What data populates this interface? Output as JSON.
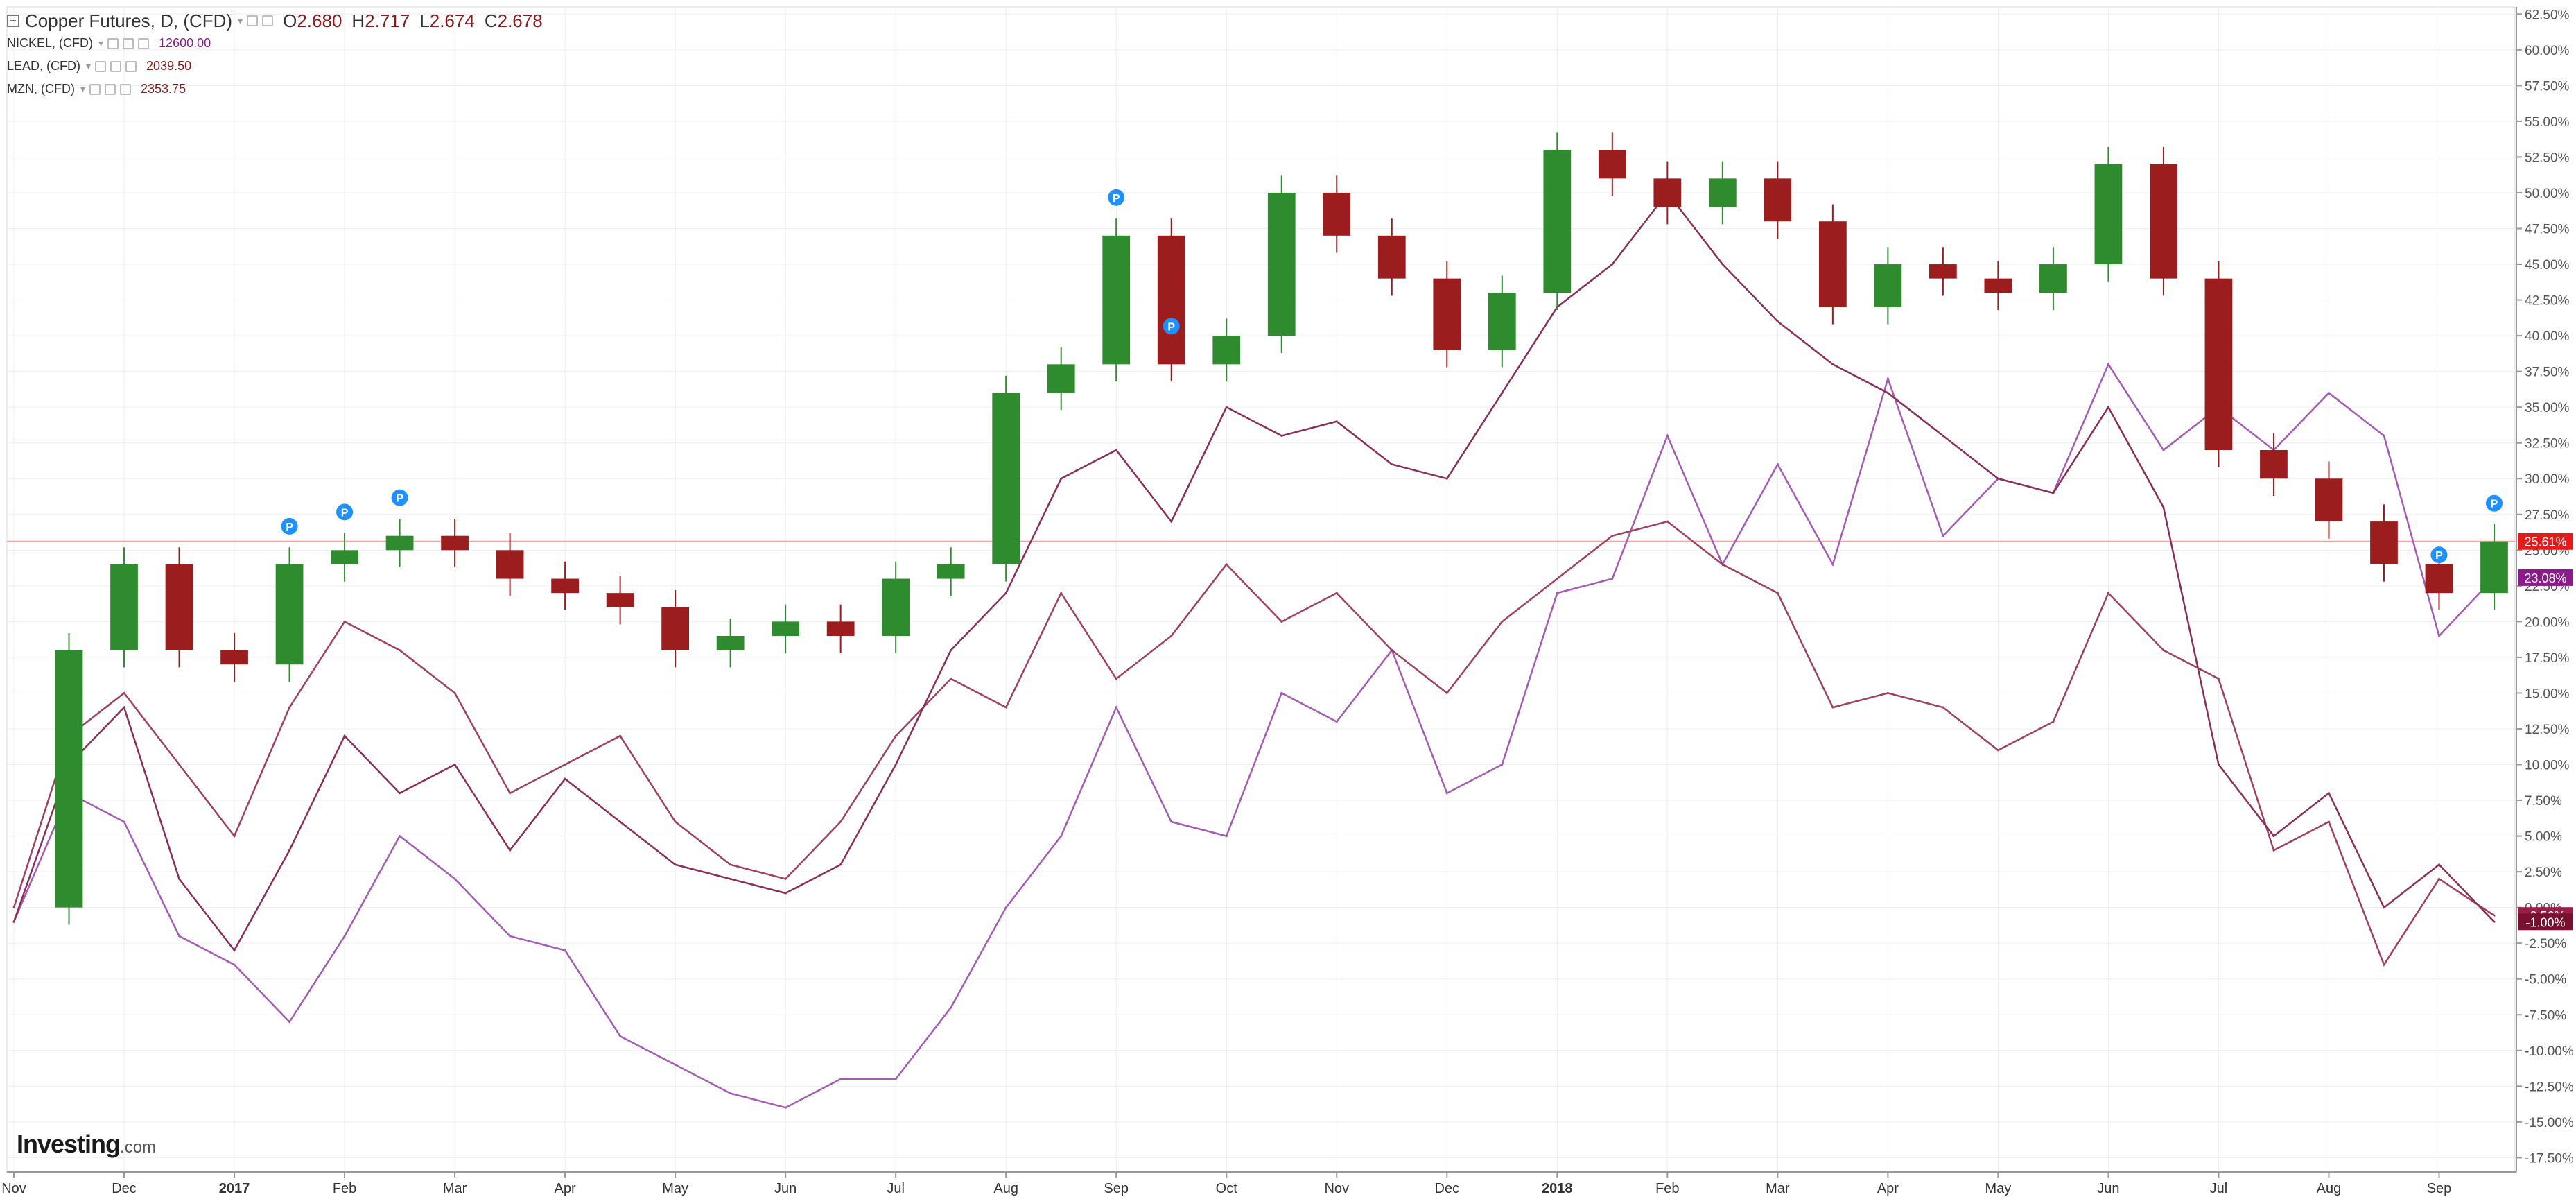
{
  "legend": {
    "main_title": "Copper Futures, D, (CFD)",
    "ohlc": [
      {
        "key": "O",
        "value": "2.680"
      },
      {
        "key": "H",
        "value": "2.717"
      },
      {
        "key": "L",
        "value": "2.674"
      },
      {
        "key": "C",
        "value": "2.678"
      }
    ],
    "series": [
      {
        "label": "NICKEL, (CFD)",
        "value": "12600.00",
        "color": "#8b1a8b"
      },
      {
        "label": "LEAD, (CFD)",
        "value": "2039.50",
        "color": "#8b1a1a"
      },
      {
        "label": "MZN, (CFD)",
        "value": "2353.75",
        "color": "#8b1a1a"
      }
    ]
  },
  "brand": {
    "name": "Investing",
    "suffix": ".com"
  },
  "colors": {
    "up": "#2e8b2e",
    "down": "#9b1d1d",
    "nickel": "#a55ab5",
    "lead": "#a0405e",
    "zinc": "#8b2d5a",
    "grid": "#eeeeee",
    "ref_line": "#f2a0a0",
    "marker": "#1e90ff"
  },
  "chart_data": {
    "type": "line",
    "title": "Copper Futures, D, (CFD)",
    "xlabel": "",
    "ylabel": "",
    "ylim": [
      -18.5,
      63
    ],
    "x_ticks": [
      "Nov",
      "Dec",
      "2017",
      "Feb",
      "Mar",
      "Apr",
      "May",
      "Jun",
      "Jul",
      "Aug",
      "Sep",
      "Oct",
      "Nov",
      "Dec",
      "2018",
      "Feb",
      "Mar",
      "Apr",
      "May",
      "Jun",
      "Jul",
      "Aug",
      "Sep"
    ],
    "y_ticks": [
      "62.50%",
      "60.00%",
      "57.50%",
      "55.00%",
      "52.50%",
      "50.00%",
      "47.50%",
      "45.00%",
      "42.50%",
      "40.00%",
      "37.50%",
      "35.00%",
      "32.50%",
      "30.00%",
      "27.50%",
      "25.00%",
      "22.50%",
      "20.00%",
      "17.50%",
      "15.00%",
      "12.50%",
      "10.00%",
      "7.50%",
      "5.00%",
      "2.50%",
      "0.00%",
      "-2.50%",
      "-5.00%",
      "-7.50%",
      "-10.00%",
      "-12.50%",
      "-15.00%",
      "-17.50%"
    ],
    "reference_line": 25.61,
    "last_value_labels": [
      {
        "text": "25.61%",
        "value": 25.61,
        "color": "#e31b1b"
      },
      {
        "text": "23.08%",
        "value": 23.08,
        "color": "#8b1a8b"
      },
      {
        "text": "-0.56%",
        "value": -0.56,
        "color": "#9b1d4a"
      },
      {
        "text": "-1.00%",
        "value": -1.0,
        "color": "#7a1030"
      }
    ],
    "grid": true,
    "legend_position": "top-left",
    "series": [
      {
        "name": "Copper Futures, D, (CFD)",
        "style": "candlestick",
        "x": [
          "Nov",
          "",
          "Dec",
          "",
          "2017",
          "",
          "Feb",
          "",
          "Mar",
          "",
          "Apr",
          "",
          "May",
          "",
          "Jun",
          "",
          "Jul",
          "",
          "Aug",
          "",
          "Sep",
          "",
          "Oct",
          "",
          "Nov",
          "",
          "Dec",
          "",
          "2018",
          "",
          "Feb",
          "",
          "Mar",
          "",
          "Apr",
          "",
          "May",
          "",
          "Jun",
          "",
          "Jul",
          "",
          "Aug",
          "",
          "Sep",
          ""
        ],
        "values": [
          0,
          18,
          24,
          18,
          17,
          24,
          25,
          26,
          25,
          23,
          22,
          21,
          18,
          19,
          20,
          19,
          23,
          24,
          36,
          38,
          47,
          38,
          40,
          50,
          47,
          44,
          39,
          43,
          53,
          51,
          49,
          51,
          48,
          42,
          45,
          44,
          43,
          45,
          52,
          44,
          32,
          30,
          27,
          24,
          22,
          25.61
        ]
      },
      {
        "name": "NICKEL, (CFD)",
        "x": [
          "Nov",
          "",
          "Dec",
          "",
          "2017",
          "",
          "Feb",
          "",
          "Mar",
          "",
          "Apr",
          "",
          "May",
          "",
          "Jun",
          "",
          "Jul",
          "",
          "Aug",
          "",
          "Sep",
          "",
          "Oct",
          "",
          "Nov",
          "",
          "Dec",
          "",
          "2018",
          "",
          "Feb",
          "",
          "Mar",
          "",
          "Apr",
          "",
          "May",
          "",
          "Jun",
          "",
          "Jul",
          "",
          "Aug",
          "",
          "Sep",
          ""
        ],
        "values": [
          -1,
          8,
          6,
          -2,
          -4,
          -8,
          -2,
          5,
          2,
          -2,
          -3,
          -9,
          -11,
          -13,
          -14,
          -12,
          -12,
          -7,
          0,
          5,
          14,
          6,
          5,
          15,
          13,
          18,
          8,
          10,
          22,
          23,
          33,
          24,
          31,
          24,
          37,
          26,
          30,
          29,
          38,
          32,
          35,
          32,
          36,
          33,
          19,
          23.08
        ]
      },
      {
        "name": "LEAD, (CFD)",
        "x": [
          "Nov",
          "",
          "Dec",
          "",
          "2017",
          "",
          "Feb",
          "",
          "Mar",
          "",
          "Apr",
          "",
          "May",
          "",
          "Jun",
          "",
          "Jul",
          "",
          "Aug",
          "",
          "Sep",
          "",
          "Oct",
          "",
          "Nov",
          "",
          "Dec",
          "",
          "2018",
          "",
          "Feb",
          "",
          "Mar",
          "",
          "Apr",
          "",
          "May",
          "",
          "Jun",
          "",
          "Jul",
          "",
          "Aug",
          "",
          "Sep",
          ""
        ],
        "values": [
          0,
          12,
          15,
          10,
          5,
          14,
          20,
          18,
          15,
          8,
          10,
          12,
          6,
          3,
          2,
          6,
          12,
          16,
          14,
          22,
          16,
          19,
          24,
          20,
          22,
          18,
          15,
          20,
          23,
          26,
          27,
          24,
          22,
          14,
          15,
          14,
          11,
          13,
          22,
          18,
          16,
          4,
          6,
          -4,
          2,
          -0.56
        ]
      },
      {
        "name": "MZN, (CFD)",
        "x": [
          "Nov",
          "",
          "Dec",
          "",
          "2017",
          "",
          "Feb",
          "",
          "Mar",
          "",
          "Apr",
          "",
          "May",
          "",
          "Jun",
          "",
          "Jul",
          "",
          "Aug",
          "",
          "Sep",
          "",
          "Oct",
          "",
          "Nov",
          "",
          "Dec",
          "",
          "2018",
          "",
          "Feb",
          "",
          "Mar",
          "",
          "Apr",
          "",
          "May",
          "",
          "Jun",
          "",
          "Jul",
          "",
          "Aug",
          "",
          "Sep",
          ""
        ],
        "values": [
          -1,
          10,
          14,
          2,
          -3,
          4,
          12,
          8,
          10,
          4,
          9,
          6,
          3,
          2,
          1,
          3,
          10,
          18,
          22,
          30,
          32,
          27,
          35,
          33,
          34,
          31,
          30,
          36,
          42,
          45,
          50,
          45,
          41,
          38,
          36,
          33,
          30,
          29,
          35,
          28,
          10,
          5,
          8,
          0,
          3,
          -1.0
        ]
      }
    ],
    "markers": [
      {
        "series": "Copper Futures, D, (CFD)",
        "label": "P",
        "index": 5
      },
      {
        "series": "Copper Futures, D, (CFD)",
        "label": "P",
        "index": 6
      },
      {
        "series": "Copper Futures, D, (CFD)",
        "label": "P",
        "index": 7
      },
      {
        "series": "Copper Futures, D, (CFD)",
        "label": "P",
        "index": 20
      },
      {
        "series": "Copper Futures, D, (CFD)",
        "label": "P",
        "index": 21
      },
      {
        "series": "Copper Futures, D, (CFD)",
        "label": "P",
        "index": 44
      },
      {
        "series": "Copper Futures, D, (CFD)",
        "label": "P",
        "index": 45
      }
    ]
  }
}
